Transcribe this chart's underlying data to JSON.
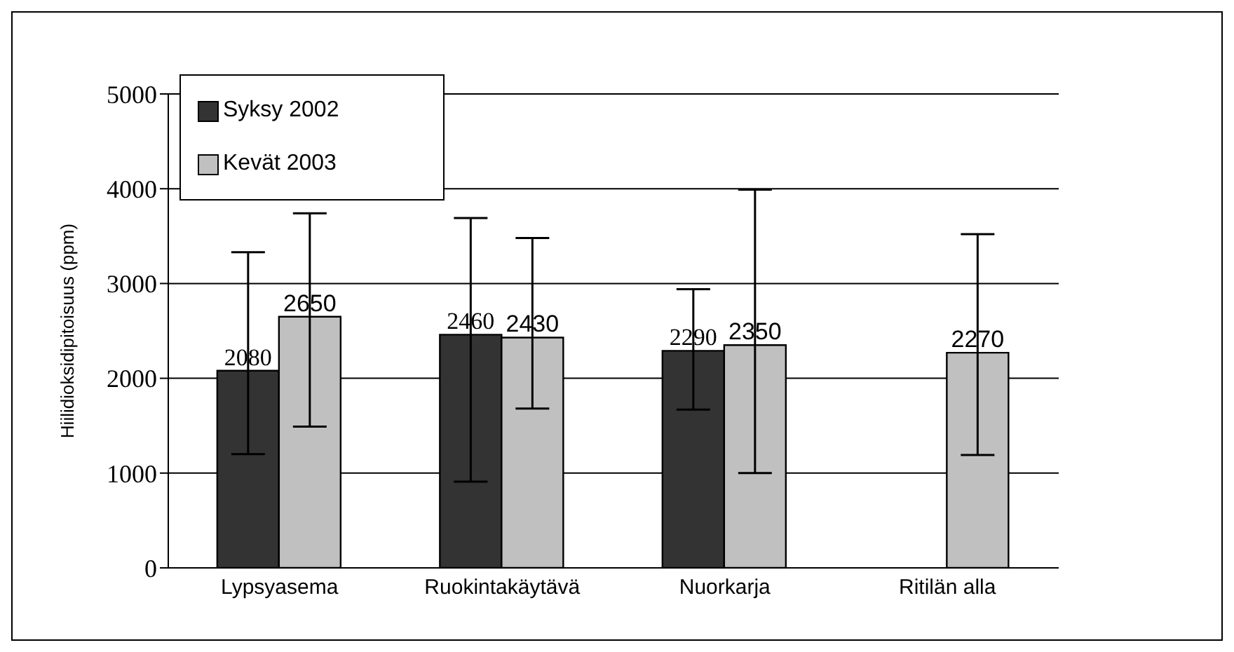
{
  "chart_data": {
    "type": "bar",
    "ylabel": "Hiilidioksidipitoisuus (ppm)",
    "categories": [
      "Lypsyasema",
      "Ruokintakäytävä",
      "Nuorkarja",
      "Ritilän alla"
    ],
    "series": [
      {
        "name": "Syksy 2002",
        "color": "#333333",
        "values": [
          2080,
          2460,
          2290,
          null
        ],
        "errors": [
          [
            1200,
            3330
          ],
          [
            910,
            3690
          ],
          [
            1670,
            2940
          ],
          null
        ]
      },
      {
        "name": "Kevät 2003",
        "color": "#c0c0c0",
        "values": [
          2650,
          2430,
          2350,
          2270
        ],
        "errors": [
          [
            1490,
            3740
          ],
          [
            1680,
            3480
          ],
          [
            1000,
            3990
          ],
          [
            1190,
            3520
          ]
        ]
      }
    ],
    "ylim": [
      0,
      5000
    ],
    "yticks": [
      0,
      1000,
      2000,
      3000,
      4000,
      5000
    ],
    "grid": "y",
    "legend": "top left",
    "data_labels": true
  }
}
